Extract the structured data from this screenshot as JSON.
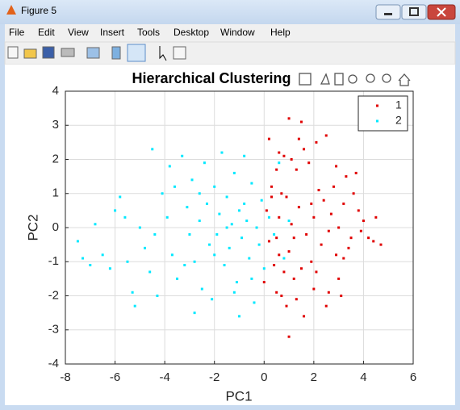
{
  "window": {
    "title": "Figure 5",
    "menu": [
      "File",
      "Edit",
      "View",
      "Insert",
      "Tools",
      "Desktop",
      "Window",
      "Help"
    ]
  },
  "chart_data": {
    "type": "scatter",
    "title": "Hierarchical Clustering",
    "xlabel": "PC1",
    "ylabel": "PC2",
    "xlim": [
      -8,
      6
    ],
    "xticks": [
      -8,
      -6,
      -4,
      -2,
      0,
      2,
      4,
      6
    ],
    "ylim": [
      -4,
      4
    ],
    "yticks": [
      -4,
      -3,
      -2,
      -1,
      0,
      1,
      2,
      3,
      4
    ],
    "grid": true,
    "legend": "northeast",
    "series": [
      {
        "name": "1",
        "color": "#e00000",
        "x": [
          0.1,
          0.3,
          0.5,
          0.8,
          1.0,
          1.5,
          2.1,
          2.5,
          1.2,
          0.9,
          1.6,
          1.0,
          0.7,
          2.0,
          2.6,
          3.0,
          3.2,
          3.5,
          4.0,
          4.4,
          4.7,
          4.5,
          3.6,
          3.3,
          3.7,
          2.8,
          2.4,
          2.0,
          1.7,
          1.4,
          1.1,
          0.6,
          0.4,
          0.2,
          0.9,
          1.3,
          1.8,
          2.2,
          2.7,
          3.0,
          3.4,
          2.9,
          2.3,
          1.9,
          1.5,
          1.0,
          0.6,
          0.3,
          0.0,
          0.5,
          1.3,
          2.5,
          3.1,
          3.9,
          4.2,
          1.6,
          1.1,
          0.5,
          0.2,
          0.6,
          1.9,
          2.6,
          3.2,
          1.2,
          0.8,
          2.1,
          1.4,
          2.9,
          3.8,
          0.7
        ],
        "y": [
          0.5,
          1.2,
          -0.3,
          2.1,
          3.2,
          3.1,
          2.5,
          2.7,
          -1.5,
          -2.3,
          -2.6,
          -3.2,
          -2.0,
          -1.8,
          -1.9,
          -1.5,
          -0.9,
          -0.3,
          0.2,
          -0.4,
          -0.5,
          0.3,
          1.0,
          1.5,
          1.6,
          1.2,
          0.8,
          0.3,
          -0.2,
          0.6,
          0.1,
          -0.8,
          -1.1,
          -0.4,
          0.9,
          1.7,
          1.9,
          1.1,
          0.4,
          0.0,
          -0.6,
          -0.8,
          -0.5,
          -1.0,
          -1.2,
          -0.7,
          0.3,
          0.9,
          -1.6,
          -1.9,
          -2.1,
          -2.3,
          -2.0,
          -0.1,
          -0.3,
          2.3,
          2.0,
          1.7,
          2.6,
          2.2,
          0.7,
          -0.1,
          0.7,
          -0.3,
          -1.3,
          -1.3,
          2.6,
          1.8,
          0.5,
          1.0
        ]
      },
      {
        "name": "2",
        "color": "#00e8ff",
        "x": [
          -7.5,
          -7.3,
          -7.0,
          -6.8,
          -6.5,
          -6.2,
          -6.0,
          -5.8,
          -5.5,
          -5.3,
          -5.2,
          -5.0,
          -4.8,
          -4.6,
          -4.5,
          -4.3,
          -4.1,
          -3.9,
          -3.8,
          -3.7,
          -3.5,
          -3.3,
          -3.1,
          -3.0,
          -2.9,
          -2.8,
          -2.6,
          -2.5,
          -2.4,
          -2.3,
          -2.2,
          -2.1,
          -2.0,
          -1.9,
          -1.8,
          -1.7,
          -1.6,
          -1.5,
          -1.4,
          -1.3,
          -1.2,
          -1.1,
          -1.0,
          -0.9,
          -0.8,
          -0.7,
          -0.6,
          -0.5,
          -0.4,
          -0.3,
          -0.2,
          -0.1,
          0.0,
          0.2,
          0.4,
          0.6,
          0.8,
          1.0,
          -2.8,
          -3.6,
          -1.0,
          -0.5,
          -4.4,
          -3.2,
          -2.0,
          -1.5,
          -0.8,
          -2.6,
          -5.6,
          -1.2
        ],
        "y": [
          -0.4,
          -0.9,
          -1.1,
          0.1,
          -0.8,
          -1.2,
          0.5,
          0.9,
          -1.0,
          -1.9,
          -2.3,
          0.0,
          -0.6,
          -1.3,
          2.3,
          -2.0,
          1.0,
          0.3,
          1.8,
          -0.8,
          -1.5,
          2.1,
          0.6,
          -0.2,
          1.4,
          -1.0,
          0.2,
          -1.8,
          1.9,
          0.7,
          -0.5,
          -2.1,
          1.2,
          -0.2,
          0.4,
          2.2,
          -1.1,
          0.9,
          -0.6,
          0.1,
          1.6,
          -1.6,
          0.5,
          -0.3,
          2.1,
          0.2,
          -0.9,
          1.3,
          -2.2,
          0.0,
          -0.5,
          0.8,
          -1.2,
          0.3,
          -0.2,
          1.9,
          -0.9,
          0.2,
          -2.5,
          1.2,
          -2.6,
          -1.5,
          -0.2,
          -1.1,
          -0.8,
          0.0,
          0.7,
          1.0,
          0.3,
          -1.9
        ]
      }
    ]
  }
}
